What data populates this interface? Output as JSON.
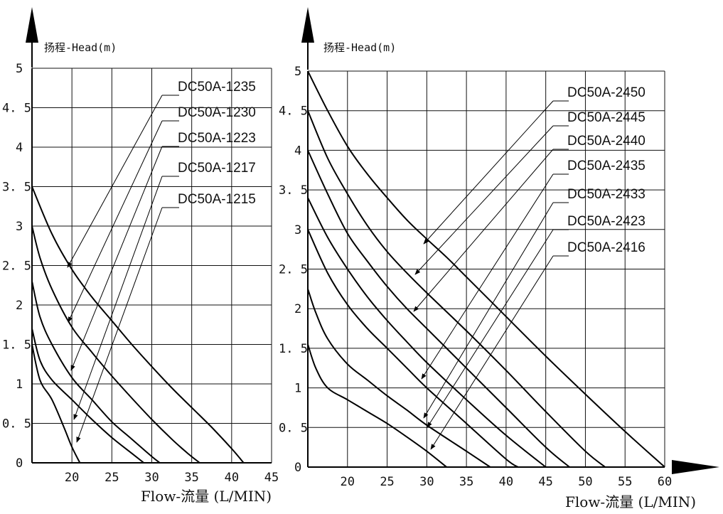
{
  "chart_data": [
    {
      "type": "line",
      "ylabel": "扬程-Head(m)",
      "xlabel": "Flow-流量 (L/MIN)",
      "xlim": [
        15,
        45
      ],
      "ylim": [
        0,
        5
      ],
      "x_ticks": [
        "20",
        "25",
        "30",
        "35",
        "40",
        "45"
      ],
      "y_ticks": [
        "0",
        "0.5",
        "1",
        "1.5",
        "2",
        "2.5",
        "3",
        "3.5",
        "4",
        "4.5",
        "5"
      ],
      "grid": true,
      "series": [
        {
          "name": "DC50A-1235",
          "x": [
            15,
            17.5,
            20,
            22.5,
            25,
            27.5,
            30,
            32.5,
            35,
            37.5,
            40,
            41.5
          ],
          "y": [
            3.5,
            2.9,
            2.45,
            2.1,
            1.8,
            1.5,
            1.22,
            0.95,
            0.7,
            0.45,
            0.18,
            0
          ]
        },
        {
          "name": "DC50A-1230",
          "x": [
            15,
            16,
            17.5,
            20,
            22.5,
            25,
            27.5,
            30,
            32.5,
            34.5,
            36
          ],
          "y": [
            3.0,
            2.6,
            2.2,
            1.72,
            1.4,
            1.1,
            0.82,
            0.55,
            0.3,
            0.12,
            0
          ]
        },
        {
          "name": "DC50A-1223",
          "x": [
            15,
            16,
            17.5,
            20,
            22.5,
            25,
            27.5,
            30,
            31
          ],
          "y": [
            2.3,
            1.85,
            1.5,
            1.08,
            0.8,
            0.52,
            0.3,
            0.08,
            0
          ]
        },
        {
          "name": "DC50A-1217",
          "x": [
            15,
            16,
            17.5,
            20,
            22.5,
            25,
            27.5,
            29
          ],
          "y": [
            1.7,
            1.3,
            1.05,
            0.8,
            0.55,
            0.32,
            0.12,
            0
          ]
        },
        {
          "name": "DC50A-1215",
          "x": [
            15,
            16,
            17.5,
            19,
            20,
            21
          ],
          "y": [
            1.5,
            1.05,
            0.8,
            0.45,
            0.2,
            0
          ]
        }
      ]
    },
    {
      "type": "line",
      "ylabel": "扬程-Head(m)",
      "xlabel": "Flow-流量 (L/MIN)",
      "xlim": [
        15,
        60
      ],
      "ylim": [
        0,
        5
      ],
      "x_ticks": [
        "20",
        "25",
        "30",
        "35",
        "40",
        "45",
        "50",
        "55",
        "60"
      ],
      "y_ticks": [
        "0",
        "0.5",
        "1",
        "1.5",
        "2",
        "2.5",
        "3",
        "3.5",
        "4",
        "4.5",
        "5"
      ],
      "grid": true,
      "series": [
        {
          "name": "DC50A-2450",
          "x": [
            15,
            17.5,
            20,
            22.5,
            25,
            27.5,
            30,
            32.5,
            35,
            40,
            45,
            50,
            55,
            60
          ],
          "y": [
            5.0,
            4.5,
            4.05,
            3.7,
            3.4,
            3.12,
            2.88,
            2.65,
            2.4,
            1.9,
            1.4,
            0.92,
            0.45,
            0
          ]
        },
        {
          "name": "DC50A-2445",
          "x": [
            15,
            17.5,
            20,
            22.5,
            25,
            27.5,
            30,
            35,
            40,
            45,
            50,
            52.5
          ],
          "y": [
            4.5,
            3.9,
            3.45,
            3.05,
            2.72,
            2.45,
            2.2,
            1.72,
            1.22,
            0.7,
            0.2,
            0
          ]
        },
        {
          "name": "DC50A-2440",
          "x": [
            15,
            17.5,
            20,
            22.5,
            25,
            27.5,
            30,
            35,
            40,
            45,
            48
          ],
          "y": [
            4.0,
            3.45,
            2.95,
            2.6,
            2.28,
            2.0,
            1.75,
            1.25,
            0.75,
            0.25,
            0
          ]
        },
        {
          "name": "DC50A-2435",
          "x": [
            15,
            17.5,
            20,
            22.5,
            25,
            27.5,
            30,
            35,
            40,
            45
          ],
          "y": [
            3.4,
            2.9,
            2.5,
            2.15,
            1.85,
            1.58,
            1.32,
            0.85,
            0.4,
            0
          ]
        },
        {
          "name": "DC50A-2433",
          "x": [
            15,
            17.5,
            20,
            22.5,
            25,
            27.5,
            30,
            35,
            40,
            41.5
          ],
          "y": [
            3.0,
            2.45,
            2.05,
            1.75,
            1.5,
            1.25,
            1.0,
            0.55,
            0.1,
            0
          ]
        },
        {
          "name": "DC50A-2423",
          "x": [
            15,
            16,
            17.5,
            20,
            22.5,
            25,
            27.5,
            30,
            35,
            38
          ],
          "y": [
            2.25,
            1.95,
            1.62,
            1.3,
            1.1,
            0.9,
            0.72,
            0.53,
            0.2,
            0
          ]
        },
        {
          "name": "DC50A-2416",
          "x": [
            15,
            16,
            17.5,
            20,
            22.5,
            25,
            27.5,
            30,
            32.5
          ],
          "y": [
            1.55,
            1.25,
            1.0,
            0.85,
            0.7,
            0.55,
            0.38,
            0.2,
            0
          ]
        }
      ]
    }
  ]
}
